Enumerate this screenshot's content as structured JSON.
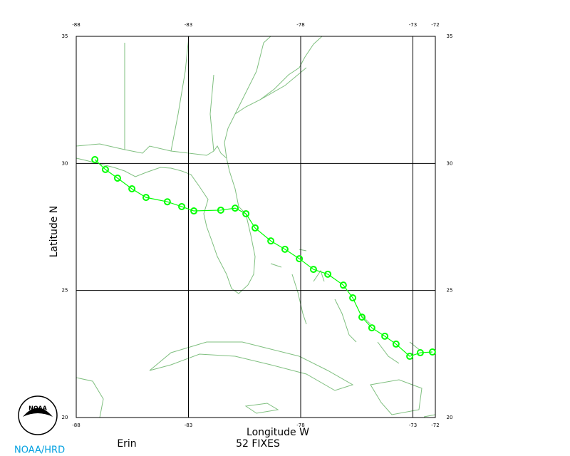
{
  "chart_data": {
    "type": "track",
    "storm": "Erin",
    "fixes_label": "52 FIXES",
    "x_label": "Longitude W",
    "y_label": "Latitude N",
    "xlim": [
      -88,
      -72
    ],
    "ylim": [
      20,
      35
    ],
    "xticks": [
      -88,
      -83,
      -78,
      -73,
      -72
    ],
    "yticks": [
      20,
      25,
      30,
      35
    ],
    "grid": true,
    "color": "#00ff00",
    "x": [
      -87.17,
      -86.7,
      -86.16,
      -85.52,
      -84.89,
      -83.94,
      -83.3,
      -82.76,
      -81.56,
      -80.92,
      -80.44,
      -80.03,
      -79.33,
      -78.7,
      -78.06,
      -77.43,
      -76.79,
      -76.1,
      -75.68,
      -75.27,
      -74.83,
      -74.25,
      -73.75,
      -73.14,
      -72.67,
      -72.13
    ],
    "y": [
      30.15,
      29.76,
      29.42,
      29.0,
      28.66,
      28.49,
      28.3,
      28.13,
      28.16,
      28.24,
      28.02,
      27.46,
      26.95,
      26.62,
      26.25,
      25.83,
      25.64,
      25.21,
      24.71,
      23.95,
      23.53,
      23.2,
      22.89,
      22.41,
      22.55,
      22.58
    ]
  },
  "logo": {
    "text": "NOAA",
    "credit": "NOAA/HRD"
  }
}
